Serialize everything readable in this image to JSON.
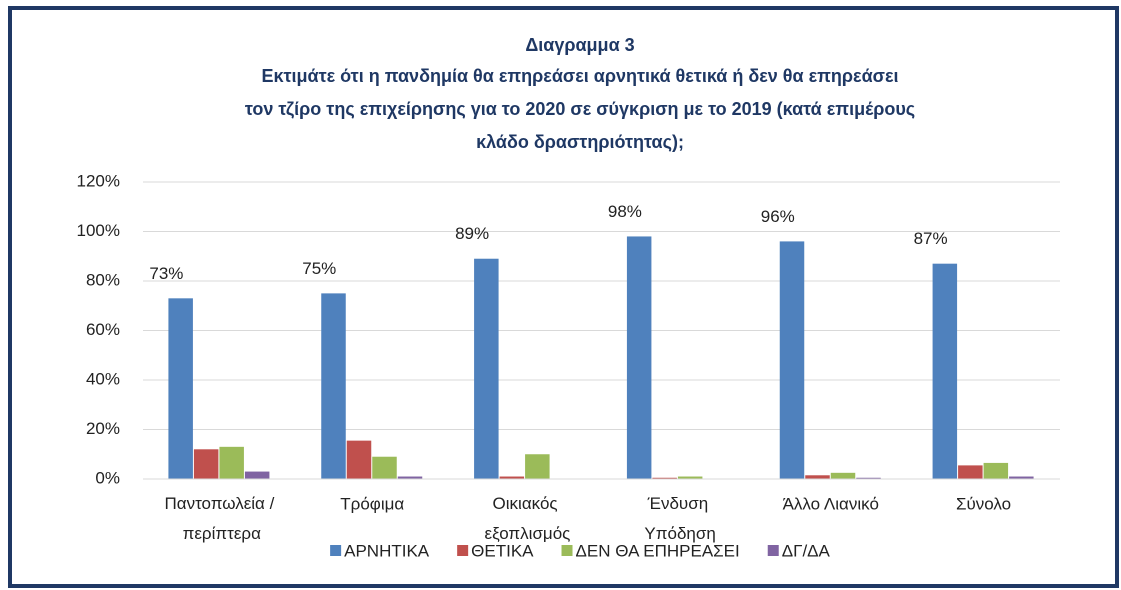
{
  "chart_data": {
    "type": "bar",
    "title": "Διαγραμμα 3",
    "subtitle": [
      "Εκτιμάτε ότι η πανδημία θα επηρεάσει αρνητικά θετικά ή δεν θα επηρεάσει",
      "τον τζίρο της επιχείρησης για το 2020 σε σύγκριση με το 2019 (κατά επιμέρους",
      "κλάδο δραστηριότητας);"
    ],
    "categories": [
      "Παντοπωλεία / περίπτερα",
      "Τρόφιμα",
      "Οικιακός εξοπλισμός",
      "Ένδυση Υπόδηση",
      "Άλλο Λιανικό",
      "Σύνολο"
    ],
    "series": [
      {
        "name": "ΑΡΝΗΤΙΚΑ",
        "color": "#4f81bd",
        "values": [
          73,
          75,
          89,
          98,
          96,
          87
        ],
        "value_labels": [
          "73%",
          "75%",
          "89%",
          "98%",
          "96%",
          "87%"
        ]
      },
      {
        "name": "ΘΕΤΙΚΑ",
        "color": "#c0504d",
        "values": [
          12,
          15.5,
          1,
          0.5,
          1.5,
          5.5
        ]
      },
      {
        "name": "ΔΕΝ ΘΑ ΕΠΗΡΕΑΣΕΙ",
        "color": "#9bbb59",
        "values": [
          13,
          9,
          10,
          1,
          2.5,
          6.5
        ]
      },
      {
        "name": "ΔΓ/ΔΑ",
        "color": "#8064a2",
        "values": [
          3,
          1,
          0,
          0,
          0.5,
          1
        ]
      }
    ],
    "ylim": [
      0,
      120
    ],
    "yticks": [
      {
        "value": 0,
        "label": "0%"
      },
      {
        "value": 20,
        "label": "20%"
      },
      {
        "value": 40,
        "label": "40%"
      },
      {
        "value": 60,
        "label": "60%"
      },
      {
        "value": 80,
        "label": "80%"
      },
      {
        "value": 100,
        "label": "100%"
      },
      {
        "value": 120,
        "label": "120%"
      }
    ],
    "grid": true,
    "legend": "bottom"
  }
}
